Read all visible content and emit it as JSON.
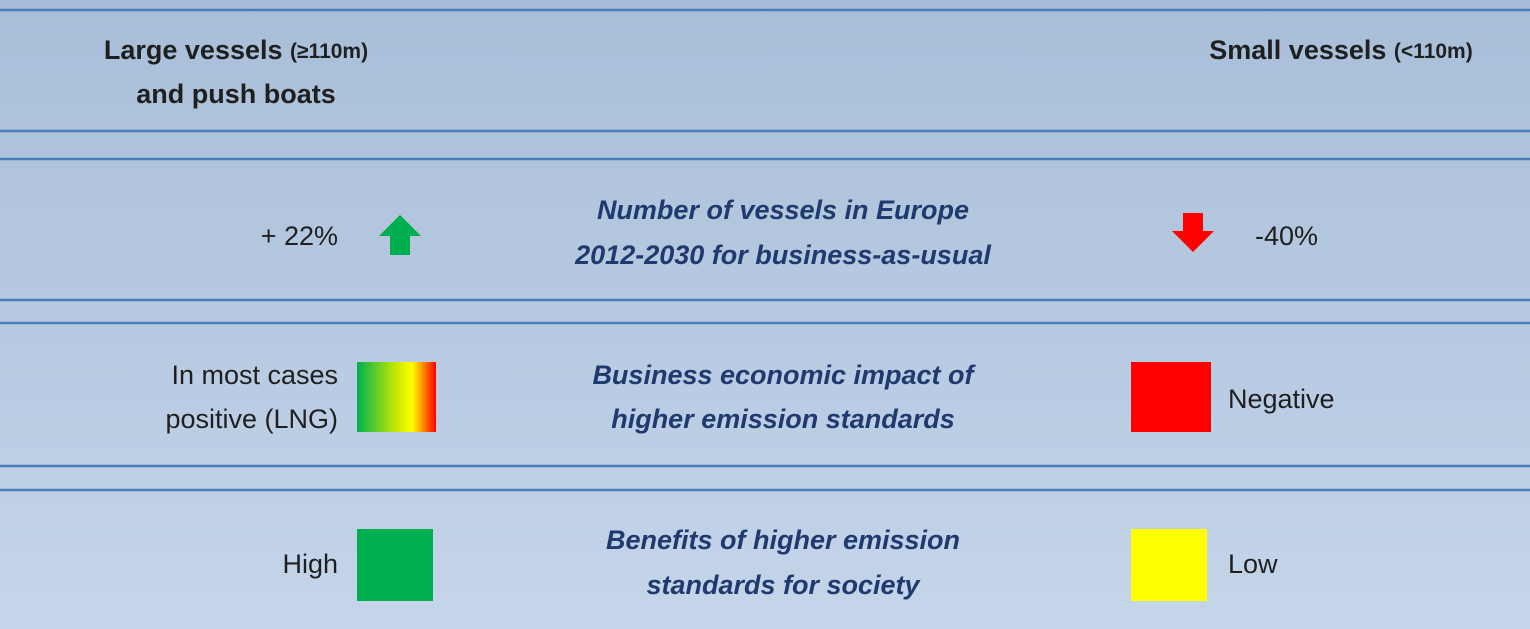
{
  "header": {
    "left": {
      "title": "Large vessels",
      "qualifier": "(≥110m)",
      "line2": "and push boats"
    },
    "right": {
      "title": "Small vessels",
      "qualifier": "(<110m)"
    }
  },
  "rows": [
    {
      "left": [
        "+ 22%"
      ],
      "center": [
        "Number of vessels in Europe",
        "2012-2030 for business-as-usual"
      ],
      "right": [
        "-40%"
      ]
    },
    {
      "left": [
        "In most cases",
        "positive (LNG)"
      ],
      "center": [
        "Business economic impact of",
        "higher emission standards"
      ],
      "right": [
        "Negative"
      ]
    },
    {
      "left": [
        "High"
      ],
      "center": [
        "Benefits of higher emission",
        "standards for society"
      ],
      "right": [
        "Low"
      ]
    }
  ]
}
